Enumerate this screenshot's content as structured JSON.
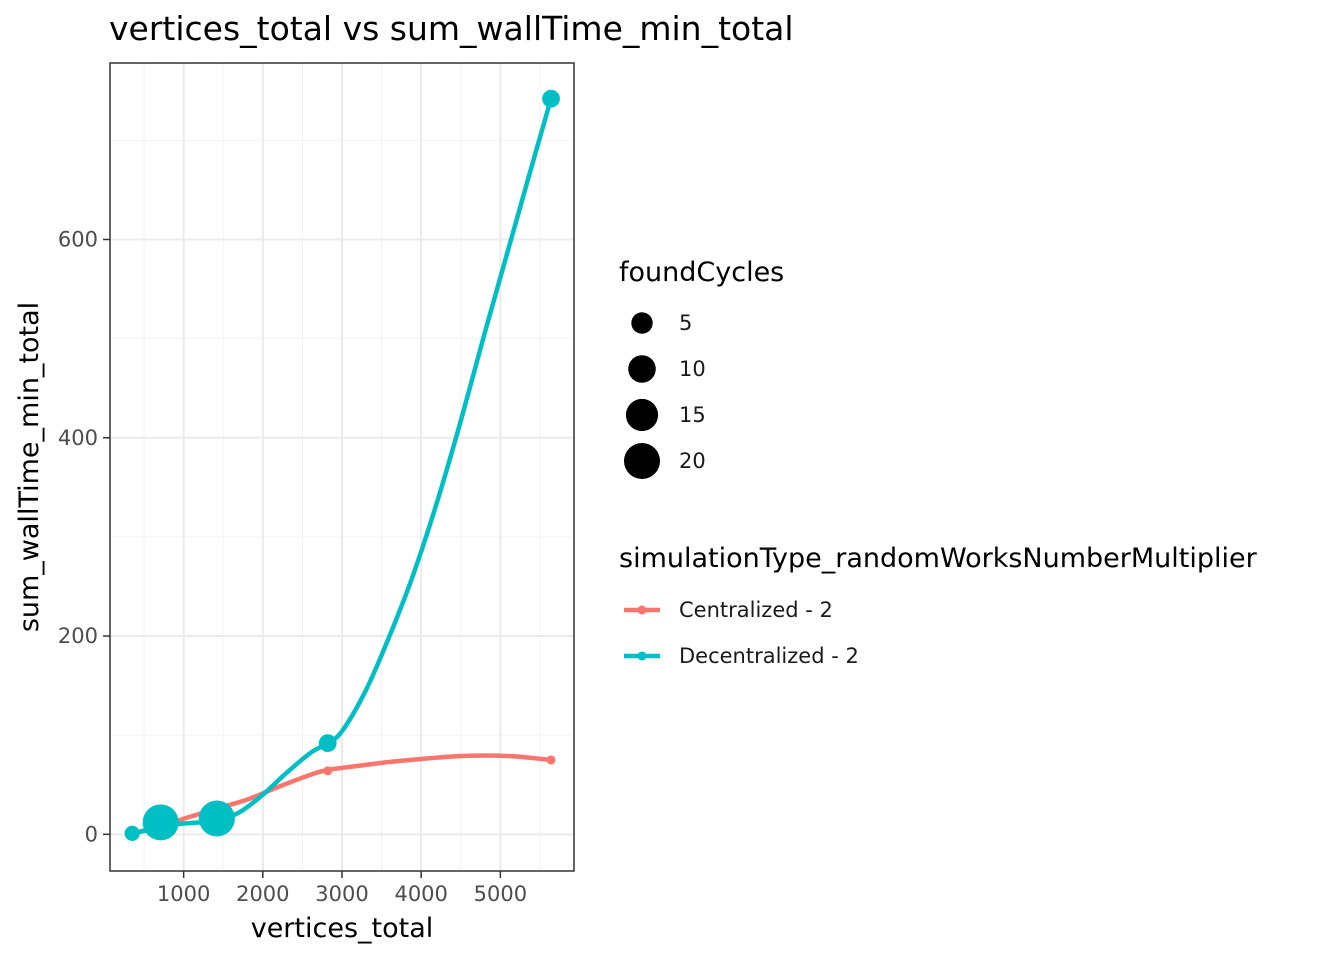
{
  "chart_data": {
    "type": "line",
    "title": "vertices_total  vs  sum_wallTime_min_total",
    "xlabel": "vertices_total",
    "ylabel": "sum_wallTime_min_total",
    "xlim": [
      70,
      5930
    ],
    "ylim": [
      -37,
      778
    ],
    "x_ticks": [
      1000,
      2000,
      3000,
      4000,
      5000
    ],
    "x_tick_labels": [
      "1000",
      "2000",
      "3000",
      "4000",
      "5000"
    ],
    "y_ticks": [
      0,
      200,
      400,
      600
    ],
    "y_tick_labels": [
      "0",
      "200",
      "400",
      "600"
    ],
    "grid": true,
    "legend_position": "right",
    "size_legend": {
      "title": "foundCycles",
      "values": [
        5,
        10,
        15,
        20
      ],
      "labels": [
        "5",
        "10",
        "15",
        "20"
      ]
    },
    "color_legend": {
      "title": "simulationType_randomWorksNumberMultiplier"
    },
    "series": [
      {
        "name": "Centralized - 2",
        "color": "#F8766D",
        "points": [
          {
            "x": 350,
            "y": 0,
            "size": 1
          },
          {
            "x": 710,
            "y": 7,
            "size": 1
          },
          {
            "x": 1420,
            "y": 22,
            "size": 1
          },
          {
            "x": 2820,
            "y": 64,
            "size": 1
          },
          {
            "x": 5640,
            "y": 75,
            "size": 1
          }
        ],
        "smooth": [
          [
            350,
            1
          ],
          [
            700,
            8
          ],
          [
            1050,
            17
          ],
          [
            1420,
            26
          ],
          [
            1800,
            35
          ],
          [
            2200,
            48
          ],
          [
            2600,
            60
          ],
          [
            2820,
            65
          ],
          [
            3200,
            69
          ],
          [
            3600,
            73
          ],
          [
            4000,
            76
          ],
          [
            4400,
            78.5
          ],
          [
            4800,
            79.5
          ],
          [
            5200,
            78.5
          ],
          [
            5640,
            75
          ]
        ]
      },
      {
        "name": "Decentralized - 2",
        "color": "#00BFC4",
        "points": [
          {
            "x": 350,
            "y": 1,
            "size": 2
          },
          {
            "x": 710,
            "y": 12,
            "size": 20
          },
          {
            "x": 1420,
            "y": 16,
            "size": 20
          },
          {
            "x": 2820,
            "y": 92,
            "size": 3
          },
          {
            "x": 5640,
            "y": 742,
            "size": 3
          }
        ],
        "smooth": [
          [
            350,
            1
          ],
          [
            600,
            5
          ],
          [
            900,
            10
          ],
          [
            1200,
            12
          ],
          [
            1420,
            14
          ],
          [
            1700,
            22
          ],
          [
            2000,
            40
          ],
          [
            2300,
            62
          ],
          [
            2600,
            82
          ],
          [
            2820,
            92
          ],
          [
            3000,
            104
          ],
          [
            3300,
            145
          ],
          [
            3600,
            200
          ],
          [
            3900,
            262
          ],
          [
            4200,
            335
          ],
          [
            4500,
            417
          ],
          [
            4800,
            505
          ],
          [
            5100,
            590
          ],
          [
            5400,
            675
          ],
          [
            5640,
            742
          ]
        ]
      }
    ]
  }
}
